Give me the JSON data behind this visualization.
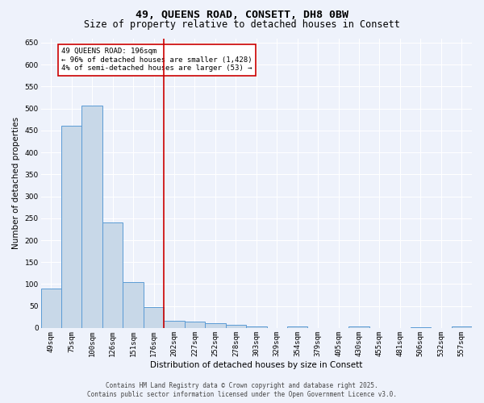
{
  "title": "49, QUEENS ROAD, CONSETT, DH8 0BW",
  "subtitle": "Size of property relative to detached houses in Consett",
  "xlabel": "Distribution of detached houses by size in Consett",
  "ylabel": "Number of detached properties",
  "footer_line1": "Contains HM Land Registry data © Crown copyright and database right 2025.",
  "footer_line2": "Contains public sector information licensed under the Open Government Licence v3.0.",
  "categories": [
    "49sqm",
    "75sqm",
    "100sqm",
    "126sqm",
    "151sqm",
    "176sqm",
    "202sqm",
    "227sqm",
    "252sqm",
    "278sqm",
    "303sqm",
    "329sqm",
    "354sqm",
    "379sqm",
    "405sqm",
    "430sqm",
    "455sqm",
    "481sqm",
    "506sqm",
    "532sqm",
    "557sqm"
  ],
  "values": [
    90,
    460,
    507,
    240,
    104,
    48,
    17,
    15,
    11,
    8,
    3,
    0,
    4,
    0,
    0,
    3,
    0,
    0,
    2,
    0,
    3
  ],
  "bar_color": "#c8d8e8",
  "bar_edge_color": "#5b9bd5",
  "vline_color": "#cc0000",
  "annotation_text": "49 QUEENS ROAD: 196sqm\n← 96% of detached houses are smaller (1,428)\n4% of semi-detached houses are larger (53) →",
  "annotation_box_color": "#ffffff",
  "annotation_box_edge_color": "#cc0000",
  "ylim": [
    0,
    660
  ],
  "yticks": [
    0,
    50,
    100,
    150,
    200,
    250,
    300,
    350,
    400,
    450,
    500,
    550,
    600,
    650
  ],
  "bg_color": "#eef2fb",
  "grid_color": "#ffffff",
  "title_fontsize": 9.5,
  "subtitle_fontsize": 8.5,
  "tick_fontsize": 6.5,
  "label_fontsize": 7.5,
  "footer_fontsize": 5.5
}
